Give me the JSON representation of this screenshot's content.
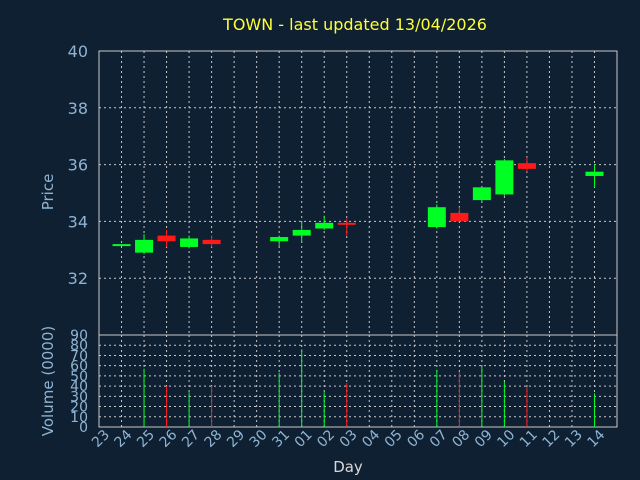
{
  "chart_data": {
    "type": "candlestick",
    "title": "TOWN - last updated 13/04/2026",
    "ylabel_price": "Price",
    "ylabel_volume": "Volume (0000)",
    "xlabel": "Day",
    "price_ylim": [
      30,
      40
    ],
    "price_ticks": [
      32,
      34,
      36,
      38,
      40
    ],
    "volume_ylim": [
      0,
      90
    ],
    "volume_ticks": [
      0,
      10,
      20,
      30,
      40,
      50,
      60,
      70,
      80,
      90
    ],
    "grid": true,
    "colors": {
      "background": "#0f2033",
      "up": "#00ff22",
      "down": "#ff1a1a",
      "grid": "#c8c8c8",
      "title": "#ffff33",
      "axis_text": "#8fb4d2"
    },
    "days": [
      "23",
      "24",
      "25",
      "26",
      "27",
      "28",
      "29",
      "30",
      "31",
      "01",
      "02",
      "03",
      "04",
      "05",
      "06",
      "07",
      "08",
      "09",
      "10",
      "11",
      "12",
      "13",
      "14"
    ],
    "candles": [
      {
        "day": "23",
        "open": 33.2,
        "high": 33.2,
        "low": 33.2,
        "close": 33.2
      },
      {
        "day": "24",
        "open": 32.9,
        "high": 33.55,
        "low": 32.85,
        "close": 33.35
      },
      {
        "day": "25",
        "open": 33.5,
        "high": 33.7,
        "low": 33.1,
        "close": 33.3
      },
      {
        "day": "26",
        "open": 33.1,
        "high": 33.5,
        "low": 33.05,
        "close": 33.4
      },
      {
        "day": "27",
        "open": 33.35,
        "high": 33.5,
        "low": 33.1,
        "close": 33.2
      },
      {
        "day": "30",
        "open": 33.3,
        "high": 33.5,
        "low": 33.1,
        "close": 33.45
      },
      {
        "day": "31",
        "open": 33.5,
        "high": 34.0,
        "low": 33.25,
        "close": 33.7
      },
      {
        "day": "01",
        "open": 33.75,
        "high": 34.2,
        "low": 33.7,
        "close": 33.95
      },
      {
        "day": "02",
        "open": 33.95,
        "high": 34.1,
        "low": 33.5,
        "close": 33.9
      },
      {
        "day": "06",
        "open": 33.8,
        "high": 34.6,
        "low": 33.75,
        "close": 34.5
      },
      {
        "day": "07",
        "open": 34.3,
        "high": 34.5,
        "low": 34.0,
        "close": 34.0
      },
      {
        "day": "08",
        "open": 34.75,
        "high": 35.2,
        "low": 34.7,
        "close": 35.2
      },
      {
        "day": "09",
        "open": 34.95,
        "high": 36.2,
        "low": 34.9,
        "close": 36.15
      },
      {
        "day": "10",
        "open": 36.05,
        "high": 36.25,
        "low": 35.75,
        "close": 35.85
      },
      {
        "day": "13",
        "open": 35.6,
        "high": 36.0,
        "low": 35.2,
        "close": 35.75
      }
    ],
    "volume": [
      {
        "day": "24",
        "value": 57,
        "color": "up"
      },
      {
        "day": "25",
        "value": 40,
        "color": "down"
      },
      {
        "day": "26",
        "value": 34,
        "color": "up"
      },
      {
        "day": "27",
        "value": 40,
        "color": "down"
      },
      {
        "day": "30",
        "value": 53,
        "color": "up"
      },
      {
        "day": "31",
        "value": 76,
        "color": "up"
      },
      {
        "day": "01",
        "value": 34,
        "color": "up"
      },
      {
        "day": "02",
        "value": 43,
        "color": "down"
      },
      {
        "day": "06",
        "value": 56,
        "color": "up"
      },
      {
        "day": "07",
        "value": 54,
        "color": "down"
      },
      {
        "day": "08",
        "value": 59,
        "color": "up"
      },
      {
        "day": "09",
        "value": 44,
        "color": "up"
      },
      {
        "day": "10",
        "value": 39,
        "color": "down"
      },
      {
        "day": "13",
        "value": 33,
        "color": "up"
      }
    ]
  }
}
